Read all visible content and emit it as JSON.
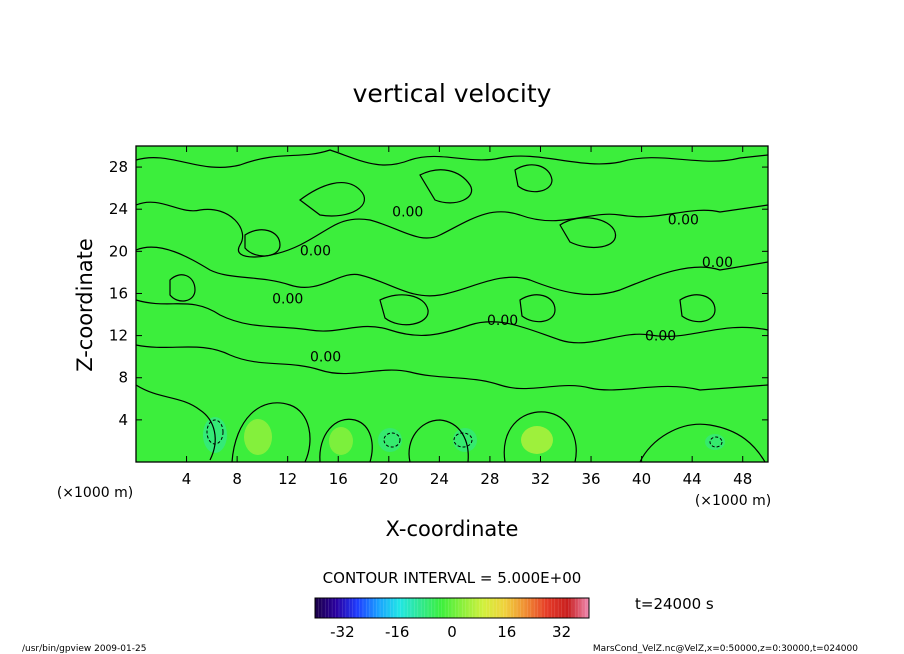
{
  "chart_data": {
    "type": "contour",
    "title": "vertical velocity",
    "xlabel": "X-coordinate",
    "ylabel": "Z-coordinate",
    "x_unit_label": "(×1000 m)",
    "z_unit_label": "(×1000 m)",
    "xlim": [
      0,
      50
    ],
    "zlim": [
      0,
      30
    ],
    "x_ticks": [
      4,
      8,
      12,
      16,
      20,
      24,
      28,
      32,
      36,
      40,
      44,
      48
    ],
    "z_ticks": [
      4,
      8,
      12,
      16,
      20,
      24,
      28
    ],
    "contour_interval_label": "CONTOUR INTERVAL = 5.000E+00",
    "contour_labels": [
      {
        "text": "0.00",
        "x": 21.5,
        "z": 23.8
      },
      {
        "text": "0.00",
        "x": 14.2,
        "z": 20.1
      },
      {
        "text": "0.00",
        "x": 12.0,
        "z": 15.5
      },
      {
        "text": "0.00",
        "x": 15.0,
        "z": 10.0
      },
      {
        "text": "0.00",
        "x": 29.0,
        "z": 13.5
      },
      {
        "text": "0.00",
        "x": 41.5,
        "z": 12.0
      },
      {
        "text": "0.00",
        "x": 43.3,
        "z": 23.0
      },
      {
        "text": "0.00",
        "x": 46.0,
        "z": 19.0
      }
    ],
    "time_label": "t=24000 s",
    "colorbar": {
      "ticks": [
        -32,
        -16,
        0,
        16,
        32
      ],
      "range": [
        -40,
        40
      ],
      "colors": [
        "#1a0046",
        "#2a00a0",
        "#1e3cff",
        "#1aa0ff",
        "#20e6e6",
        "#30e890",
        "#3cf03c",
        "#8cf03c",
        "#d2f03c",
        "#f0d23c",
        "#f08c32",
        "#e63c28",
        "#c81e1e",
        "#f08cb4"
      ]
    },
    "field_background_color": "#3cee3c",
    "contour_color": "#000000"
  },
  "footer": {
    "left": "/usr/bin/gpview   2009-01-25",
    "right": "MarsCond_VelZ.nc@VelZ,x=0:50000,z=0:30000,t=024000"
  }
}
